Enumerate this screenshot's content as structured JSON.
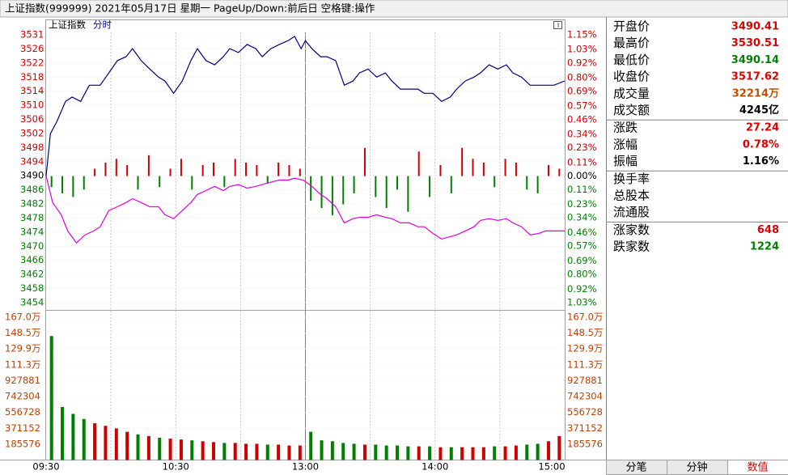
{
  "window_title": "上证指数(999999)  2021年05月17日 星期一  PageUp/Down:前后日 空格键:操作",
  "chart_data": {
    "type": "line",
    "title": "上证指数",
    "subtitle": "分时",
    "xlim": [
      0,
      240
    ],
    "xticks": [
      {
        "value": 0,
        "label": "09:30"
      },
      {
        "value": 60,
        "label": "10:30"
      },
      {
        "value": 120,
        "label": "13:00"
      },
      {
        "value": 180,
        "label": "14:00"
      },
      {
        "value": 240,
        "label": "15:00"
      }
    ],
    "xgrid": [
      30,
      60,
      90,
      120,
      150,
      180,
      210
    ],
    "ylim": [
      3454.29,
      3530.55
    ],
    "yticks": [
      {
        "value": 3530.55,
        "label": "3531"
      },
      {
        "value": 3526.54,
        "label": "3526"
      },
      {
        "value": 3522.52,
        "label": "3522"
      },
      {
        "value": 3518.51,
        "label": "3518"
      },
      {
        "value": 3514.5,
        "label": "3514"
      },
      {
        "value": 3510.48,
        "label": "3510"
      },
      {
        "value": 3506.47,
        "label": "3506"
      },
      {
        "value": 3502.46,
        "label": "3502"
      },
      {
        "value": 3498.44,
        "label": "3498"
      },
      {
        "value": 3494.43,
        "label": "3494"
      },
      {
        "value": 3490.41,
        "label": "3490"
      },
      {
        "value": 3486.4,
        "label": "3486"
      },
      {
        "value": 3482.38,
        "label": "3482"
      },
      {
        "value": 3478.37,
        "label": "3478"
      },
      {
        "value": 3474.36,
        "label": "3474"
      },
      {
        "value": 3470.34,
        "label": "3470"
      },
      {
        "value": 3466.33,
        "label": "3466"
      },
      {
        "value": 3462.32,
        "label": "3462"
      },
      {
        "value": 3458.3,
        "label": "3458"
      },
      {
        "value": 3454.29,
        "label": "3454"
      }
    ],
    "y2lim": [
      -1.03,
      1.15
    ],
    "y2ticks": [
      {
        "value": 1.15,
        "label": "1.15%"
      },
      {
        "value": 1.03,
        "label": "1.03%"
      },
      {
        "value": 0.92,
        "label": "0.92%"
      },
      {
        "value": 0.8,
        "label": "0.80%"
      },
      {
        "value": 0.69,
        "label": "0.69%"
      },
      {
        "value": 0.57,
        "label": "0.57%"
      },
      {
        "value": 0.46,
        "label": "0.46%"
      },
      {
        "value": 0.34,
        "label": "0.34%"
      },
      {
        "value": 0.23,
        "label": "0.23%"
      },
      {
        "value": 0.11,
        "label": "0.11%"
      },
      {
        "value": 0,
        "label": "0.00%"
      },
      {
        "value": -0.11,
        "label": "0.11%"
      },
      {
        "value": -0.23,
        "label": "0.23%"
      },
      {
        "value": -0.34,
        "label": "0.34%"
      },
      {
        "value": -0.46,
        "label": "0.46%"
      },
      {
        "value": -0.57,
        "label": "0.57%"
      },
      {
        "value": -0.69,
        "label": "0.69%"
      },
      {
        "value": -0.8,
        "label": "0.80%"
      },
      {
        "value": -0.92,
        "label": "0.92%"
      },
      {
        "value": -1.03,
        "label": "1.03%"
      }
    ],
    "series": [
      {
        "color": "#000080",
        "x": [
          0,
          2,
          5,
          9,
          12,
          16,
          20,
          25,
          29,
          33,
          37,
          40,
          44,
          48,
          52,
          55,
          59,
          63,
          67,
          70,
          74,
          78,
          82,
          85,
          89,
          93,
          97,
          100,
          104,
          108,
          112,
          115,
          118,
          120,
          123,
          127,
          130,
          134,
          138,
          142,
          145,
          149,
          153,
          157,
          160,
          164,
          168,
          172,
          175,
          179,
          183,
          187,
          190,
          194,
          198,
          201,
          205,
          209,
          213,
          216,
          220,
          224,
          228,
          231,
          235,
          240
        ],
        "values": [
          3490.4,
          3502.4,
          3505.9,
          3511.6,
          3512.8,
          3511.6,
          3516.2,
          3516.2,
          3519.7,
          3523.2,
          3524.3,
          3526.6,
          3523.2,
          3520.8,
          3518.5,
          3517.4,
          3513.9,
          3517.4,
          3523.2,
          3526.6,
          3523.2,
          3522.0,
          3524.3,
          3526.6,
          3525.5,
          3527.8,
          3526.6,
          3524.3,
          3526.6,
          3527.8,
          3528.9,
          3530.1,
          3526.6,
          3528.9,
          3526.6,
          3524.3,
          3524.3,
          3523.2,
          3516.2,
          3517.4,
          3519.7,
          3520.8,
          3518.5,
          3519.7,
          3517.4,
          3515.1,
          3515.1,
          3515.1,
          3513.9,
          3513.9,
          3511.6,
          3512.8,
          3515.1,
          3517.4,
          3518.5,
          3519.7,
          3522.0,
          3520.8,
          3522.0,
          3519.7,
          3518.5,
          3516.2,
          3516.2,
          3516.2,
          3516.2,
          3517.4
        ]
      },
      {
        "color": "#e000e0",
        "x": [
          0,
          3,
          7,
          10,
          14,
          18,
          22,
          25,
          29,
          33,
          37,
          40,
          44,
          48,
          52,
          55,
          59,
          63,
          67,
          70,
          74,
          78,
          82,
          85,
          89,
          93,
          97,
          100,
          104,
          108,
          112,
          115,
          119,
          123,
          127,
          130,
          134,
          138,
          142,
          145,
          149,
          153,
          157,
          160,
          164,
          168,
          172,
          175,
          179,
          183,
          187,
          190,
          194,
          198,
          201,
          205,
          209,
          213,
          216,
          220,
          224,
          228,
          231,
          235,
          240
        ],
        "values": [
          3490.4,
          3482.8,
          3479.3,
          3474.7,
          3471.3,
          3473.6,
          3474.7,
          3475.9,
          3480.5,
          3481.6,
          3482.8,
          3483.9,
          3482.8,
          3481.6,
          3481.6,
          3479.3,
          3478.2,
          3480.5,
          3482.8,
          3485.1,
          3486.2,
          3487.4,
          3486.2,
          3487.4,
          3487.9,
          3486.9,
          3487.4,
          3487.9,
          3488.6,
          3489.2,
          3489.2,
          3489.7,
          3489.2,
          3487.4,
          3485.1,
          3483.9,
          3481.6,
          3477.0,
          3478.2,
          3478.6,
          3478.6,
          3479.3,
          3478.6,
          3478.2,
          3477.0,
          3477.0,
          3475.9,
          3475.9,
          3474.0,
          3472.4,
          3473.1,
          3473.6,
          3474.7,
          3475.9,
          3477.7,
          3478.2,
          3477.7,
          3478.2,
          3477.0,
          3475.9,
          3473.6,
          3474.0,
          3474.7,
          3474.7,
          3474.7
        ]
      }
    ],
    "bars": {
      "axis": "y2",
      "up_color": "#d00000",
      "down_color": "#008000",
      "x": [
        2.5,
        7.5,
        12.5,
        17.5,
        22.5,
        27.5,
        32.5,
        37.5,
        42.5,
        47.5,
        52.5,
        57.5,
        62.5,
        67.5,
        72.5,
        77.5,
        82.5,
        87.5,
        92.5,
        97.5,
        102.5,
        107.5,
        112.5,
        117.5,
        122.5,
        127.5,
        132.5,
        137.5,
        142.5,
        147.5,
        152.5,
        157.5,
        162.5,
        167.5,
        172.5,
        177.5,
        182.5,
        187.5,
        192.5,
        197.5,
        202.5,
        207.5,
        212.5,
        217.5,
        222.5,
        227.5,
        232.5,
        237.5
      ],
      "values": [
        -0.09,
        -0.14,
        -0.17,
        -0.11,
        0.06,
        0.11,
        0.14,
        0.09,
        -0.11,
        0.17,
        -0.09,
        0.06,
        0.14,
        -0.11,
        0.09,
        0.11,
        -0.09,
        0.14,
        0.11,
        0.09,
        -0.06,
        0.11,
        0.09,
        0.06,
        -0.2,
        -0.26,
        -0.32,
        -0.23,
        -0.14,
        0.23,
        -0.17,
        -0.26,
        -0.11,
        -0.29,
        0.2,
        -0.17,
        0.09,
        -0.14,
        0.23,
        0.14,
        0.11,
        -0.09,
        0.14,
        0.11,
        -0.11,
        -0.14,
        0.09,
        0.06
      ]
    },
    "volume": {
      "color_rule": "bars",
      "values": [
        1450000,
        620000,
        540000,
        480000,
        430000,
        400000,
        370000,
        330000,
        300000,
        280000,
        260000,
        250000,
        240000,
        230000,
        220000,
        210000,
        200000,
        200000,
        190000,
        190000,
        180000,
        180000,
        170000,
        170000,
        330000,
        230000,
        220000,
        200000,
        190000,
        180000,
        180000,
        170000,
        170000,
        160000,
        160000,
        160000,
        150000,
        150000,
        150000,
        150000,
        150000,
        160000,
        160000,
        170000,
        180000,
        190000,
        220000,
        280000
      ]
    },
    "vlim": [
      0,
      1670184
    ],
    "vticks": [
      {
        "value": 1670184,
        "label": "167.0万"
      },
      {
        "value": 1484608,
        "label": "148.5万"
      },
      {
        "value": 1299032,
        "label": "129.9万"
      },
      {
        "value": 1113456,
        "label": "111.3万"
      },
      927881,
      742304,
      556728,
      371152,
      185576
    ]
  },
  "quote_groups": [
    [
      {
        "label": "开盘价",
        "value": 3490.41,
        "color": "#e00000"
      },
      {
        "label": "最高价",
        "value": 3530.51,
        "color": "#e00000"
      },
      {
        "label": "最低价",
        "value": 3490.14,
        "color": "#008000"
      },
      {
        "label": "收盘价",
        "value": 3517.62,
        "color": "#e00000"
      },
      {
        "label": "成交量",
        "value": "32214万",
        "color": "#c05000"
      },
      {
        "label": "成交额",
        "value": "4245亿",
        "color": "#000000"
      }
    ],
    [
      {
        "label": "涨跌",
        "value": 27.24,
        "color": "#e00000"
      },
      {
        "label": "涨幅",
        "value": "0.78%",
        "color": "#e00000"
      },
      {
        "label": "振幅",
        "value": "1.16%",
        "color": "#000000"
      }
    ],
    [
      {
        "label": "换手率"
      },
      {
        "label": "总股本"
      },
      {
        "label": "流通股"
      }
    ],
    [
      {
        "label": "涨家数",
        "value": 648,
        "color": "#e00000"
      },
      {
        "label": "跌家数",
        "value": 1224,
        "color": "#008000"
      }
    ]
  ],
  "tabs": [
    "分笔",
    "分钟",
    "数值"
  ]
}
